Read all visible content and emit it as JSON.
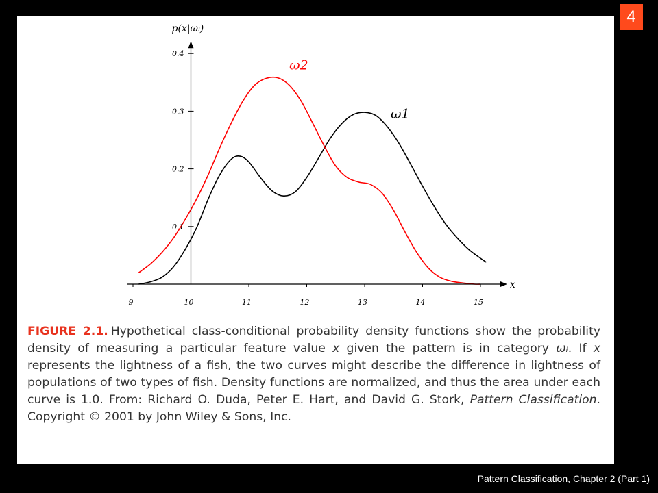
{
  "slide_number": "4",
  "footer": "Pattern Classification, Chapter 2 (Part 1)",
  "caption": {
    "label": "FIGURE 2.1.",
    "part1": "Hypothetical class-conditional probability density functions show the probability density of measuring a particular feature value ",
    "var_x": "x",
    "part2": " given the pattern is in category ",
    "omega_i": "ωᵢ",
    "part3": ". If ",
    "var_x2": "x",
    "part4": " represents the lightness of a fish, the two curves might describe the difference in lightness of populations of two types of fish. Density functions are normalized, and thus the area under each curve is 1.0. From: Richard O. Duda, Peter E. Hart, and David G. Stork, ",
    "book_title": "Pattern Classification",
    "part5": ". Copyright © 2001 by John Wiley & Sons, Inc."
  },
  "chart_data": {
    "type": "line",
    "xlabel": "x",
    "ylabel": "p(x|ωᵢ)",
    "xlim": [
      9,
      15.2
    ],
    "ylim": [
      0,
      0.4
    ],
    "x_ticks": [
      "9",
      "10",
      "11",
      "12",
      "13",
      "14",
      "15"
    ],
    "y_ticks": [
      "0.1",
      "0.2",
      "0.3",
      "0.4"
    ],
    "grid": false,
    "series": [
      {
        "name": "ω1",
        "color": "#000000",
        "x": [
          9.1,
          9.3,
          9.5,
          9.7,
          9.9,
          10.1,
          10.3,
          10.5,
          10.7,
          10.85,
          11.0,
          11.2,
          11.4,
          11.6,
          11.8,
          12.0,
          12.2,
          12.4,
          12.6,
          12.8,
          13.0,
          13.2,
          13.4,
          13.6,
          13.8,
          14.0,
          14.2,
          14.4,
          14.6,
          14.8,
          15.0,
          15.1
        ],
        "y": [
          0.0,
          0.004,
          0.012,
          0.03,
          0.06,
          0.098,
          0.148,
          0.19,
          0.217,
          0.222,
          0.212,
          0.185,
          0.162,
          0.153,
          0.16,
          0.185,
          0.218,
          0.252,
          0.278,
          0.294,
          0.298,
          0.292,
          0.272,
          0.243,
          0.207,
          0.17,
          0.135,
          0.104,
          0.08,
          0.06,
          0.045,
          0.038
        ]
      },
      {
        "name": "ω2",
        "color": "#ff0000",
        "x": [
          9.1,
          9.3,
          9.5,
          9.7,
          9.9,
          10.1,
          10.3,
          10.5,
          10.7,
          10.9,
          11.1,
          11.3,
          11.5,
          11.7,
          11.9,
          12.1,
          12.3,
          12.5,
          12.7,
          12.9,
          13.1,
          13.3,
          13.5,
          13.7,
          13.9,
          14.1,
          14.3,
          14.5,
          14.7,
          14.9,
          15.0
        ],
        "y": [
          0.02,
          0.035,
          0.055,
          0.08,
          0.112,
          0.148,
          0.19,
          0.237,
          0.28,
          0.318,
          0.345,
          0.357,
          0.358,
          0.345,
          0.318,
          0.28,
          0.24,
          0.205,
          0.185,
          0.177,
          0.173,
          0.158,
          0.128,
          0.09,
          0.055,
          0.028,
          0.012,
          0.005,
          0.002,
          0.0,
          0.0
        ]
      }
    ]
  }
}
